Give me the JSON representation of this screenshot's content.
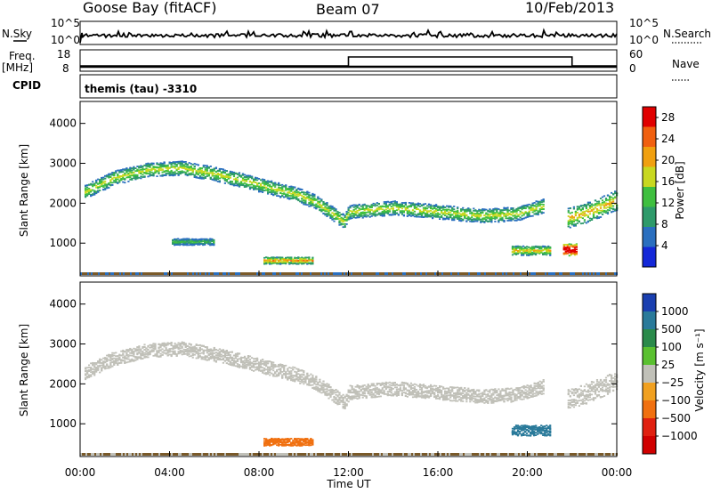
{
  "header": {
    "station": "Goose Bay (fitACF)",
    "beam": "Beam 07",
    "date": "10/Feb/2013"
  },
  "side_labels": {
    "nsky": "N.Sky",
    "nsearch": "N.Search",
    "freq": "Freq.",
    "freq_unit": "[MHz]",
    "nave": "Nave",
    "cpid": "CPID"
  },
  "cpid_text": "themis (tau) -3310",
  "noise_ticks": {
    "top": "10^5",
    "bottom": "10^0"
  },
  "freq_ticks": [
    "18",
    "8"
  ],
  "nave_ticks": [
    "60",
    "0"
  ],
  "colors": {
    "ground": "#7a5a2a",
    "power_scale": [
      "#1428d8",
      "#2a6fbf",
      "#2e9a6a",
      "#3fbf3f",
      "#c8d820",
      "#f0a010",
      "#f06010",
      "#e00000"
    ],
    "velocity_scale": [
      "#1a3fb0",
      "#2a7a9a",
      "#2a8a4a",
      "#5ac030",
      "#c0c0b8",
      "#f0a020",
      "#f07010",
      "#e02010",
      "#d00000"
    ]
  },
  "chart_data": [
    {
      "type": "heatmap",
      "title": "Power",
      "xlabel": "Time UT",
      "ylabel": "Slant Range [km]",
      "x_ticks": [
        "00:00",
        "04:00",
        "08:00",
        "12:00",
        "16:00",
        "20:00",
        "00:00"
      ],
      "y_ticks": [
        "1000",
        "2000",
        "3000",
        "4000"
      ],
      "ylim": [
        180,
        4550
      ],
      "xlim_hours": [
        0,
        24
      ],
      "colorbar": {
        "label": "Power [dB]",
        "ticks": [
          "4",
          "8",
          "12",
          "16",
          "20",
          "24",
          "28"
        ],
        "range": [
          0,
          30
        ]
      },
      "features": [
        {
          "name": "main-echo-band",
          "t": [
            0.2,
            1.5,
            3.0,
            4.5,
            6.0,
            7.5,
            8.5,
            9.6,
            10.5,
            11.8,
            12.0,
            14.0,
            16.0,
            18.0,
            19.5,
            20.7
          ],
          "range_km": [
            2300,
            2650,
            2850,
            2900,
            2750,
            2550,
            2400,
            2250,
            2050,
            1550,
            1800,
            1900,
            1800,
            1700,
            1750,
            1950
          ],
          "width_km": 350,
          "level_db": 12
        },
        {
          "name": "late-echo-band",
          "t": [
            21.8,
            22.5,
            23.4,
            24.0
          ],
          "range_km": [
            1650,
            1750,
            1950,
            2100
          ],
          "width_km": 500,
          "level_db": 14
        },
        {
          "name": "near-range-patch-a",
          "t_start": 4.1,
          "t_end": 6.0,
          "range_km": 1050,
          "width_km": 160,
          "level_db": 9
        },
        {
          "name": "near-range-patch-b",
          "t_start": 8.2,
          "t_end": 10.4,
          "range_km": 580,
          "width_km": 170,
          "level_db": 16
        },
        {
          "name": "near-range-patch-c",
          "t_start": 19.3,
          "t_end": 21.0,
          "range_km": 830,
          "width_km": 230,
          "level_db": 14
        },
        {
          "name": "strong-spot",
          "t_start": 21.6,
          "t_end": 22.2,
          "range_km": 850,
          "width_km": 300,
          "level_db": 27
        }
      ]
    },
    {
      "type": "heatmap",
      "title": "Velocity",
      "xlabel": "Time UT",
      "ylabel": "Slant Range [km]",
      "x_ticks": [
        "00:00",
        "04:00",
        "08:00",
        "12:00",
        "16:00",
        "20:00",
        "00:00"
      ],
      "y_ticks": [
        "1000",
        "2000",
        "3000",
        "4000"
      ],
      "ylim": [
        180,
        4550
      ],
      "xlim_hours": [
        0,
        24
      ],
      "colorbar": {
        "label": "Velocity [m s⁻¹]",
        "ticks": [
          "1000",
          "500",
          "100",
          "25",
          "−25",
          "−100",
          "−500",
          "−1000"
        ]
      },
      "features": [
        {
          "name": "main-echo-band",
          "t": [
            0.2,
            1.5,
            3.0,
            4.5,
            6.0,
            7.5,
            8.5,
            9.6,
            10.5,
            11.8,
            12.0,
            14.0,
            16.0,
            18.0,
            19.5,
            20.7
          ],
          "range_km": [
            2300,
            2650,
            2850,
            2900,
            2750,
            2550,
            2400,
            2250,
            2050,
            1550,
            1800,
            1900,
            1800,
            1700,
            1750,
            1950
          ],
          "width_km": 350,
          "velocity": 0
        },
        {
          "name": "late-echo-band",
          "t": [
            21.8,
            22.5,
            23.4,
            24.0
          ],
          "range_km": [
            1650,
            1750,
            1950,
            2100
          ],
          "width_km": 500,
          "velocity": 0
        },
        {
          "name": "near-range-patch-b",
          "t_start": 8.2,
          "t_end": 10.4,
          "range_km": 560,
          "width_km": 180,
          "velocity": -150
        },
        {
          "name": "near-range-patch-c",
          "t_start": 19.3,
          "t_end": 21.0,
          "range_km": 850,
          "width_km": 260,
          "velocity": 120
        }
      ]
    }
  ]
}
